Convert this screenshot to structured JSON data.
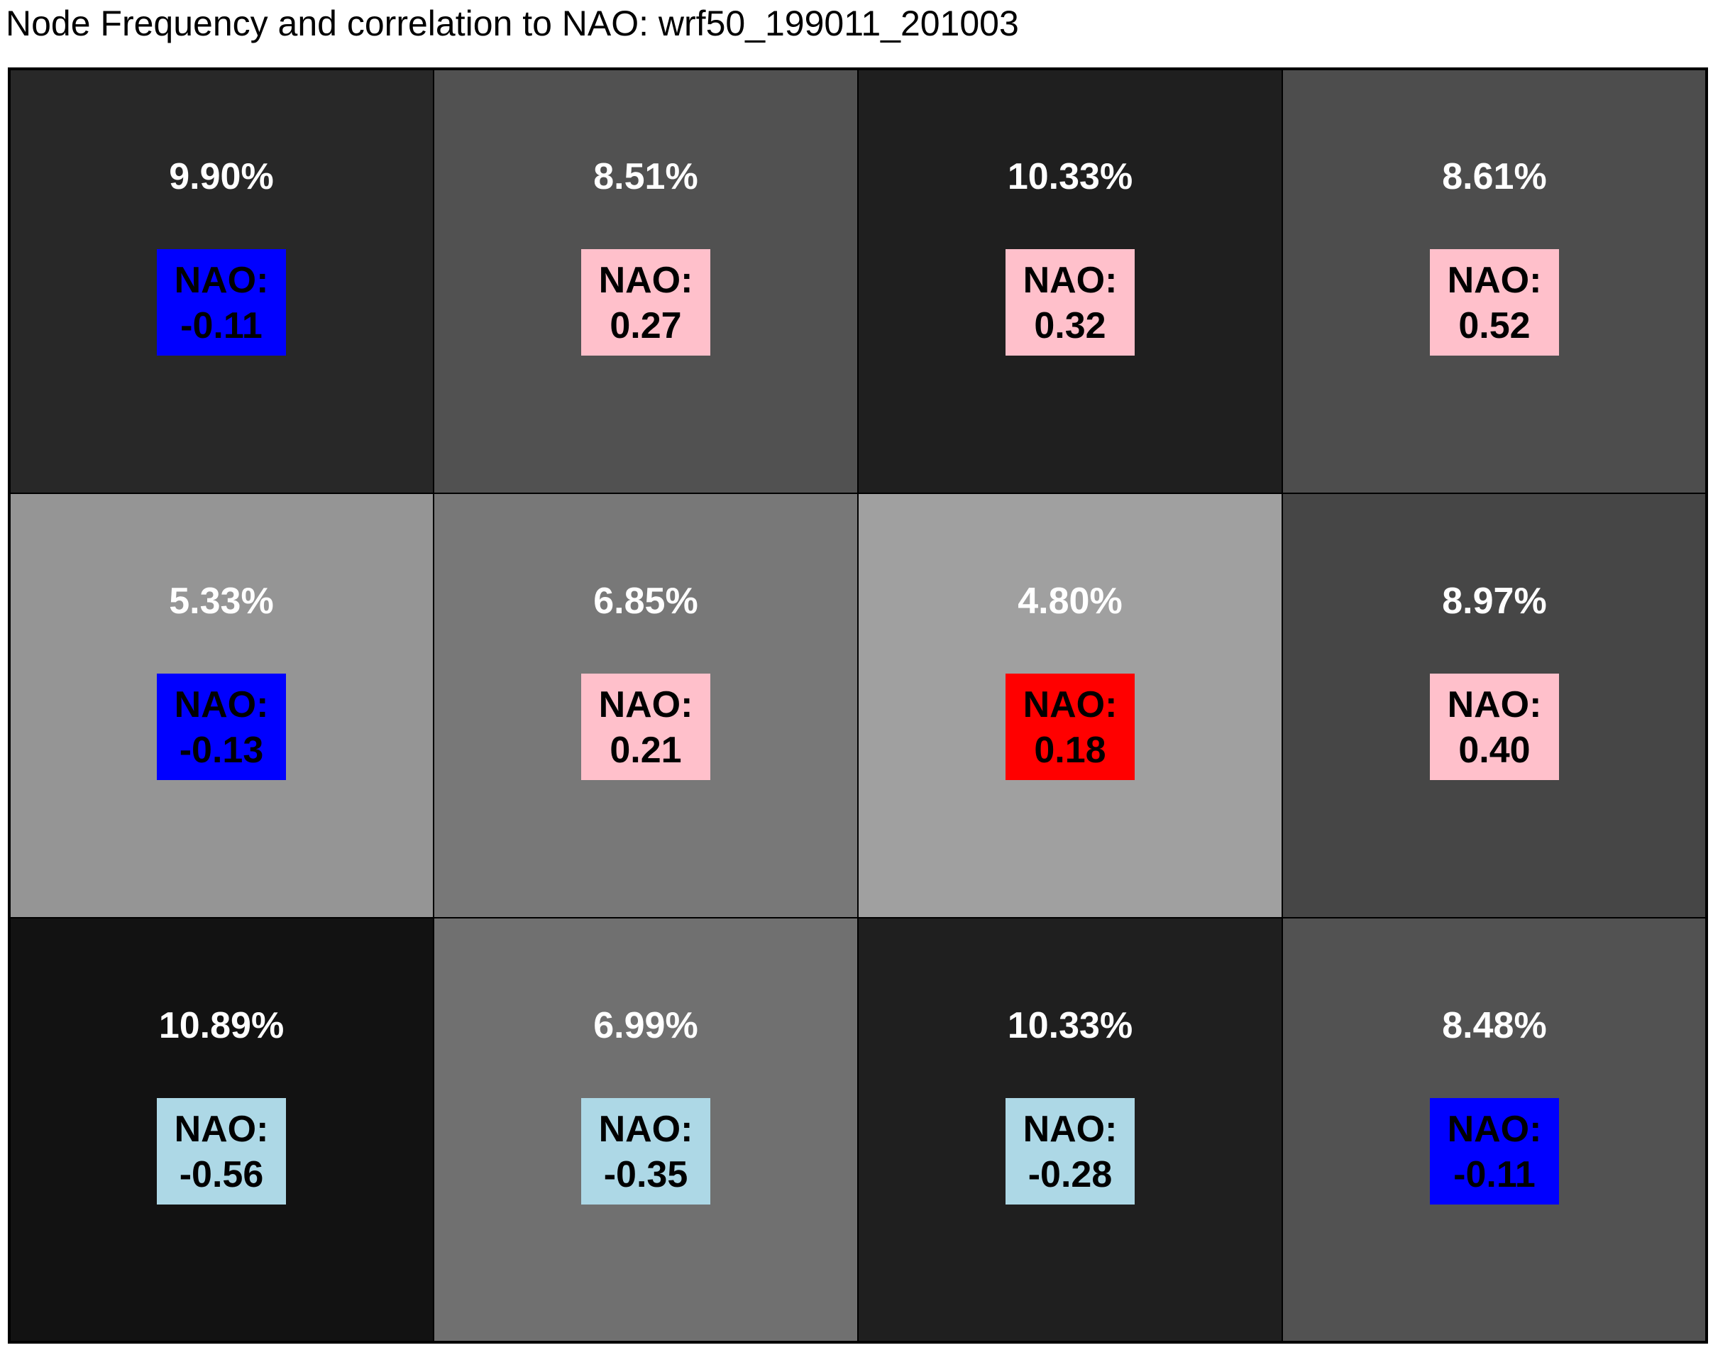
{
  "chart_data": {
    "type": "heatmap",
    "title": "Node Frequency and correlation to NAO: wrf50_199011_201003",
    "rows": 3,
    "cols": 4,
    "nao_label": "NAO:",
    "nodes": [
      {
        "freq": "9.90%",
        "freq_value": 9.9,
        "nao": "-0.11",
        "nao_value": -0.11,
        "cell_color": "#282828",
        "box_color": "#0000ff"
      },
      {
        "freq": "8.51%",
        "freq_value": 8.51,
        "nao": "0.27",
        "nao_value": 0.27,
        "cell_color": "#515151",
        "box_color": "#ffc0cb"
      },
      {
        "freq": "10.33%",
        "freq_value": 10.33,
        "nao": "0.32",
        "nao_value": 0.32,
        "cell_color": "#1f1f1f",
        "box_color": "#ffc0cb"
      },
      {
        "freq": "8.61%",
        "freq_value": 8.61,
        "nao": "0.52",
        "nao_value": 0.52,
        "cell_color": "#4d4d4d",
        "box_color": "#ffc0cb"
      },
      {
        "freq": "5.33%",
        "freq_value": 5.33,
        "nao": "-0.13",
        "nao_value": -0.13,
        "cell_color": "#959595",
        "box_color": "#0000ff"
      },
      {
        "freq": "6.85%",
        "freq_value": 6.85,
        "nao": "0.21",
        "nao_value": 0.21,
        "cell_color": "#787878",
        "box_color": "#ffc0cb"
      },
      {
        "freq": "4.80%",
        "freq_value": 4.8,
        "nao": "0.18",
        "nao_value": 0.18,
        "cell_color": "#a0a0a0",
        "box_color": "#ff0000"
      },
      {
        "freq": "8.97%",
        "freq_value": 8.97,
        "nao": "0.40",
        "nao_value": 0.4,
        "cell_color": "#464646",
        "box_color": "#ffc0cb"
      },
      {
        "freq": "10.89%",
        "freq_value": 10.89,
        "nao": "-0.56",
        "nao_value": -0.56,
        "cell_color": "#121212",
        "box_color": "#add8e6"
      },
      {
        "freq": "6.99%",
        "freq_value": 6.99,
        "nao": "-0.35",
        "nao_value": -0.35,
        "cell_color": "#707070",
        "box_color": "#add8e6"
      },
      {
        "freq": "10.33%",
        "freq_value": 10.33,
        "nao": "-0.28",
        "nao_value": -0.28,
        "cell_color": "#1f1f1f",
        "box_color": "#add8e6"
      },
      {
        "freq": "8.48%",
        "freq_value": 8.48,
        "nao": "-0.11",
        "nao_value": -0.11,
        "cell_color": "#525252",
        "box_color": "#0000ff"
      }
    ]
  }
}
